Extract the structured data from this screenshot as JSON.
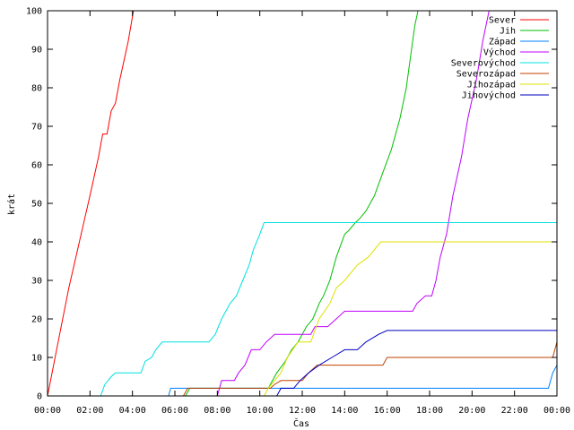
{
  "chart_data": {
    "type": "line",
    "xlabel": "Čas",
    "ylabel": "krát",
    "xlim": [
      0,
      24
    ],
    "ylim": [
      0,
      100
    ],
    "x_ticks": [
      {
        "value": 0,
        "label": "00:00"
      },
      {
        "value": 2,
        "label": "02:00"
      },
      {
        "value": 4,
        "label": "04:00"
      },
      {
        "value": 6,
        "label": "06:00"
      },
      {
        "value": 8,
        "label": "08:00"
      },
      {
        "value": 10,
        "label": "10:00"
      },
      {
        "value": 12,
        "label": "12:00"
      },
      {
        "value": 14,
        "label": "14:00"
      },
      {
        "value": 16,
        "label": "16:00"
      },
      {
        "value": 18,
        "label": "18:00"
      },
      {
        "value": 20,
        "label": "20:00"
      },
      {
        "value": 22,
        "label": "22:00"
      },
      {
        "value": 24,
        "label": "00:00"
      }
    ],
    "y_ticks": [
      0,
      10,
      20,
      30,
      40,
      50,
      60,
      70,
      80,
      90,
      100
    ],
    "grid": false,
    "legend_position": "top-right",
    "series": [
      {
        "name": "Sever",
        "color": "#ff0000",
        "points": [
          [
            0,
            0
          ],
          [
            0.5,
            14
          ],
          [
            1.0,
            28
          ],
          [
            1.5,
            40
          ],
          [
            2.0,
            52
          ],
          [
            2.4,
            62
          ],
          [
            2.6,
            68
          ],
          [
            2.8,
            68
          ],
          [
            3.0,
            74
          ],
          [
            3.2,
            76
          ],
          [
            3.4,
            82
          ],
          [
            3.8,
            92
          ],
          [
            4.05,
            100
          ]
        ]
      },
      {
        "name": "Jih",
        "color": "#00c000",
        "points": [
          [
            0,
            0
          ],
          [
            6.5,
            0
          ],
          [
            6.7,
            2
          ],
          [
            10.4,
            2
          ],
          [
            10.8,
            6
          ],
          [
            11.2,
            9
          ],
          [
            11.5,
            12
          ],
          [
            11.8,
            14
          ],
          [
            12.2,
            18
          ],
          [
            12.5,
            20
          ],
          [
            12.8,
            24
          ],
          [
            13.0,
            26
          ],
          [
            13.3,
            30
          ],
          [
            13.6,
            36
          ],
          [
            14.0,
            42
          ],
          [
            14.2,
            43
          ],
          [
            14.5,
            45
          ],
          [
            14.7,
            46
          ],
          [
            15.0,
            48
          ],
          [
            15.4,
            52
          ],
          [
            15.8,
            58
          ],
          [
            16.2,
            64
          ],
          [
            16.6,
            72
          ],
          [
            16.9,
            80
          ],
          [
            17.1,
            88
          ],
          [
            17.3,
            96
          ],
          [
            17.45,
            100
          ]
        ]
      },
      {
        "name": "Západ",
        "color": "#0080ff",
        "points": [
          [
            0,
            0
          ],
          [
            5.7,
            0
          ],
          [
            5.8,
            2
          ],
          [
            23.6,
            2
          ],
          [
            23.8,
            6
          ],
          [
            24,
            8
          ]
        ]
      },
      {
        "name": "Východ",
        "color": "#c000ff",
        "points": [
          [
            0,
            0
          ],
          [
            8.0,
            0
          ],
          [
            8.2,
            4
          ],
          [
            8.8,
            4
          ],
          [
            9.0,
            6
          ],
          [
            9.3,
            8
          ],
          [
            9.6,
            12
          ],
          [
            10.0,
            12
          ],
          [
            10.3,
            14
          ],
          [
            10.7,
            16
          ],
          [
            12.4,
            16
          ],
          [
            12.6,
            18
          ],
          [
            13.2,
            18
          ],
          [
            13.6,
            20
          ],
          [
            14.0,
            22
          ],
          [
            17.2,
            22
          ],
          [
            17.4,
            24
          ],
          [
            17.8,
            26
          ],
          [
            18.1,
            26
          ],
          [
            18.3,
            30
          ],
          [
            18.5,
            36
          ],
          [
            18.8,
            42
          ],
          [
            19.1,
            52
          ],
          [
            19.5,
            62
          ],
          [
            19.8,
            72
          ],
          [
            20.2,
            82
          ],
          [
            20.5,
            92
          ],
          [
            20.8,
            100
          ]
        ]
      },
      {
        "name": "Severovýchod",
        "color": "#00e0e0",
        "points": [
          [
            0,
            0
          ],
          [
            2.5,
            0
          ],
          [
            2.7,
            3
          ],
          [
            3.0,
            5
          ],
          [
            3.2,
            6
          ],
          [
            4.4,
            6
          ],
          [
            4.6,
            9
          ],
          [
            4.9,
            10
          ],
          [
            5.1,
            12
          ],
          [
            5.4,
            14
          ],
          [
            7.6,
            14
          ],
          [
            7.9,
            16
          ],
          [
            8.2,
            20
          ],
          [
            8.6,
            24
          ],
          [
            8.9,
            26
          ],
          [
            9.2,
            30
          ],
          [
            9.5,
            34
          ],
          [
            9.7,
            38
          ],
          [
            10.0,
            42
          ],
          [
            10.2,
            45
          ],
          [
            24,
            45
          ]
        ]
      },
      {
        "name": "Severozápad",
        "color": "#c04000",
        "points": [
          [
            0,
            0
          ],
          [
            6.4,
            0
          ],
          [
            6.6,
            2
          ],
          [
            10.5,
            2
          ],
          [
            10.7,
            3
          ],
          [
            11.0,
            4
          ],
          [
            12.0,
            4
          ],
          [
            12.3,
            6
          ],
          [
            12.7,
            8
          ],
          [
            15.8,
            8
          ],
          [
            16.0,
            10
          ],
          [
            23.8,
            10
          ],
          [
            24,
            14
          ]
        ]
      },
      {
        "name": "Jihozápad",
        "color": "#e0e000",
        "points": [
          [
            0,
            0
          ],
          [
            10.2,
            0
          ],
          [
            10.4,
            2
          ],
          [
            11.0,
            6
          ],
          [
            11.3,
            10
          ],
          [
            11.8,
            14
          ],
          [
            12.4,
            14
          ],
          [
            12.8,
            20
          ],
          [
            13.3,
            24
          ],
          [
            13.6,
            28
          ],
          [
            14.0,
            30
          ],
          [
            14.6,
            34
          ],
          [
            15.1,
            36
          ],
          [
            15.7,
            40
          ],
          [
            24,
            40
          ]
        ]
      },
      {
        "name": "Jihovýchod",
        "color": "#0000c0",
        "points": [
          [
            0,
            0
          ],
          [
            10.8,
            0
          ],
          [
            11.0,
            2
          ],
          [
            11.6,
            2
          ],
          [
            11.9,
            4
          ],
          [
            12.3,
            6
          ],
          [
            12.8,
            8
          ],
          [
            13.4,
            10
          ],
          [
            14.0,
            12
          ],
          [
            14.6,
            12
          ],
          [
            15.0,
            14
          ],
          [
            15.6,
            16
          ],
          [
            16.0,
            17
          ],
          [
            24,
            17
          ]
        ]
      }
    ]
  }
}
